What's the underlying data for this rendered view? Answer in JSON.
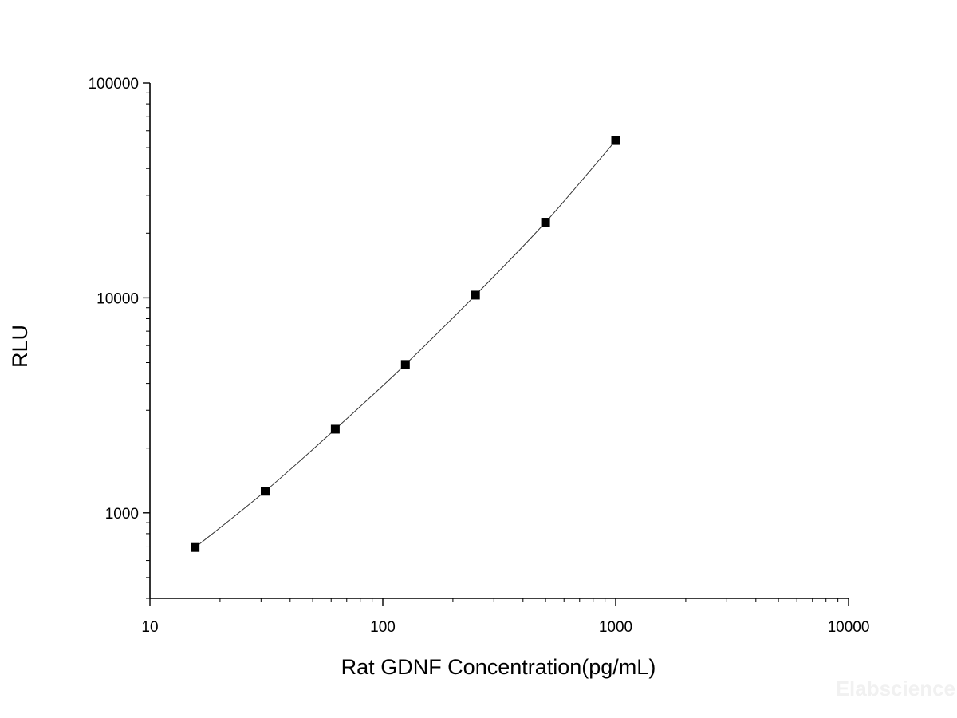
{
  "chart_data": {
    "type": "scatter",
    "title": "",
    "xlabel": "Rat GDNF Concentration(pg/mL)",
    "ylabel": "RLU",
    "x_scale": "log",
    "y_scale": "log",
    "xlim": [
      10,
      10000
    ],
    "ylim": [
      400,
      100000
    ],
    "x_ticks": [
      10,
      100,
      1000,
      10000
    ],
    "x_tick_labels": [
      "10",
      "100",
      "1000",
      "10000"
    ],
    "y_ticks": [
      1000,
      10000,
      100000
    ],
    "y_tick_labels": [
      "1000",
      "10000",
      "100000"
    ],
    "grid": false,
    "legend": "none",
    "series": [
      {
        "x": [
          15.63,
          31.25,
          62.5,
          125,
          250,
          500,
          1000
        ],
        "y": [
          690,
          1260,
          2450,
          4900,
          10300,
          22500,
          54000
        ],
        "marker": "square",
        "color": "#000000",
        "fit_line": true
      }
    ],
    "watermark": "Elabscience"
  }
}
